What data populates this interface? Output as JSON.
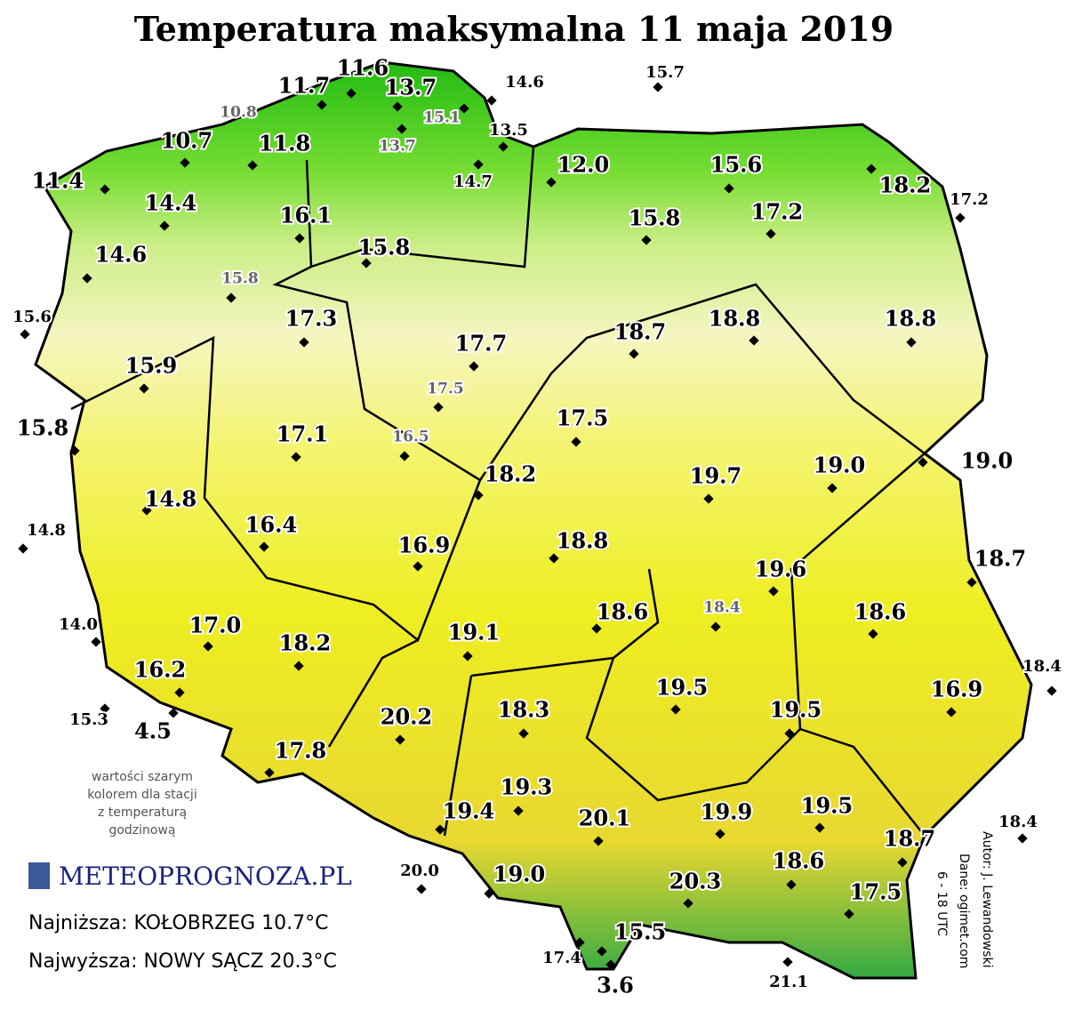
{
  "header": {
    "title": "Temperatura maksymalna 11 maja 2019"
  },
  "stations": [
    "11.7",
    "11.6",
    "13.7",
    "14.6",
    "15.7",
    "10.7",
    "11.8",
    "13.5",
    "14.7",
    "12.0",
    "15.6",
    "18.2",
    "17.2",
    "11.4",
    "14.4",
    "16.1",
    "17.2",
    "15.8",
    "15.8",
    "14.6",
    "15.6",
    "17.3",
    "18.8",
    "18.8",
    "18.7",
    "17.7",
    "15.9",
    "15.8",
    "17.1",
    "17.5",
    "19.0",
    "19.0",
    "19.7",
    "18.2",
    "14.8",
    "14.8",
    "16.4",
    "16.9",
    "18.8",
    "18.7",
    "19.6",
    "18.6",
    "18.6",
    "14.0",
    "17.0",
    "19.1",
    "18.2",
    "16.2",
    "18.4",
    "16.9",
    "19.5",
    "15.3",
    "19.5",
    "18.3",
    "4.5",
    "20.2",
    "17.8",
    "19.3",
    "19.4",
    "20.1",
    "19.9",
    "19.5",
    "18.4",
    "18.7",
    "18.6",
    "20.0",
    "19.0",
    "20.3",
    "17.5",
    "15.5",
    "17.4",
    "21.1",
    "3.6"
  ],
  "hourly_stations": [
    "10.8",
    "15.1",
    "13.7",
    "15.8",
    "17.5",
    "16.5",
    "18.4"
  ],
  "note": [
    "wartości szarym",
    "kolorem dla stacji",
    "z temperaturą",
    "godzinową"
  ],
  "logo": "METEOPROGNOZA.PL",
  "summary": {
    "lowest": "Najniższa: KOŁOBRZEG 10.7°C",
    "highest": "Najwyższa: NOWY SĄCZ 20.3°C"
  },
  "credits": [
    "Autor: J. Lewandowski",
    "Dane: ogimet.com",
    "6 - 18 UTC"
  ]
}
